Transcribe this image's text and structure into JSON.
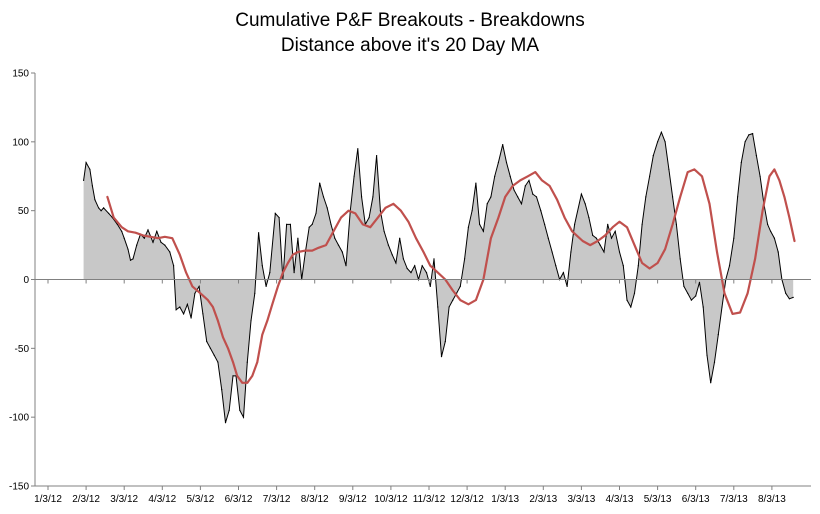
{
  "chart_data": {
    "type": "area",
    "title_lines": [
      "Cumulative P&F Breakouts - Breakdowns",
      "Distance above it's 20 Day MA"
    ],
    "xlabel": "",
    "ylabel": "",
    "ylim": [
      -150,
      150
    ],
    "yticks": [
      -150,
      -100,
      -50,
      0,
      50,
      100,
      150
    ],
    "xticks": [
      "1/3/12",
      "2/3/12",
      "3/3/12",
      "4/3/12",
      "5/3/12",
      "6/3/12",
      "7/3/12",
      "8/3/12",
      "9/3/12",
      "10/3/12",
      "11/3/12",
      "12/3/12",
      "1/3/13",
      "2/3/13",
      "3/3/13",
      "4/3/13",
      "5/3/13",
      "6/3/13",
      "7/3/13",
      "8/3/13"
    ],
    "grid": false,
    "legend": "none",
    "colors": {
      "area_fill": "#c8c8c8",
      "area_line": "#000000",
      "ma_line": "#c0504d"
    },
    "series": [
      {
        "role": "area",
        "points": [
          [
            "2/1/12",
            72
          ],
          [
            "2/3/12",
            85
          ],
          [
            "2/6/12",
            80
          ],
          [
            "2/8/12",
            68
          ],
          [
            "2/10/12",
            58
          ],
          [
            "2/13/12",
            52
          ],
          [
            "2/15/12",
            50
          ],
          [
            "2/17/12",
            52
          ],
          [
            "2/21/12",
            48
          ],
          [
            "2/24/12",
            45
          ],
          [
            "2/28/12",
            40
          ],
          [
            "3/1/12",
            35
          ],
          [
            "3/3/12",
            30
          ],
          [
            "3/6/12",
            22
          ],
          [
            "3/8/12",
            14
          ],
          [
            "3/10/12",
            15
          ],
          [
            "3/13/12",
            25
          ],
          [
            "3/16/12",
            33
          ],
          [
            "3/19/12",
            30
          ],
          [
            "3/22/12",
            36
          ],
          [
            "3/26/12",
            27
          ],
          [
            "3/29/12",
            35
          ],
          [
            "4/2/12",
            27
          ],
          [
            "4/5/12",
            25
          ],
          [
            "4/9/12",
            20
          ],
          [
            "4/12/12",
            10
          ],
          [
            "4/14/12",
            -22
          ],
          [
            "4/17/12",
            -20
          ],
          [
            "4/20/12",
            -25
          ],
          [
            "4/23/12",
            -18
          ],
          [
            "4/26/12",
            -28
          ],
          [
            "4/29/12",
            -10
          ],
          [
            "5/2/12",
            -5
          ],
          [
            "5/5/12",
            -25
          ],
          [
            "5/8/12",
            -45
          ],
          [
            "5/11/12",
            -50
          ],
          [
            "5/14/12",
            -55
          ],
          [
            "5/17/12",
            -60
          ],
          [
            "5/20/12",
            -80
          ],
          [
            "5/23/12",
            -104
          ],
          [
            "5/26/12",
            -95
          ],
          [
            "5/29/12",
            -70
          ],
          [
            "6/1/12",
            -70
          ],
          [
            "6/4/12",
            -95
          ],
          [
            "6/7/12",
            -100
          ],
          [
            "6/10/12",
            -60
          ],
          [
            "6/13/12",
            -30
          ],
          [
            "6/16/12",
            -10
          ],
          [
            "6/19/12",
            34
          ],
          [
            "6/22/12",
            10
          ],
          [
            "6/25/12",
            -5
          ],
          [
            "6/28/12",
            5
          ],
          [
            "7/2/12",
            48
          ],
          [
            "7/5/12",
            45
          ],
          [
            "7/8/12",
            0
          ],
          [
            "7/11/12",
            40
          ],
          [
            "7/14/12",
            40
          ],
          [
            "7/17/12",
            5
          ],
          [
            "7/20/12",
            30
          ],
          [
            "7/23/12",
            0
          ],
          [
            "7/26/12",
            20
          ],
          [
            "7/29/12",
            38
          ],
          [
            "8/1/12",
            40
          ],
          [
            "8/4/12",
            48
          ],
          [
            "8/7/12",
            70
          ],
          [
            "8/10/12",
            60
          ],
          [
            "8/13/12",
            52
          ],
          [
            "8/16/12",
            40
          ],
          [
            "8/19/12",
            30
          ],
          [
            "8/22/12",
            25
          ],
          [
            "8/25/12",
            20
          ],
          [
            "8/28/12",
            10
          ],
          [
            "9/1/12",
            50
          ],
          [
            "9/4/12",
            75
          ],
          [
            "9/7/12",
            95
          ],
          [
            "9/10/12",
            60
          ],
          [
            "9/13/12",
            40
          ],
          [
            "9/16/12",
            45
          ],
          [
            "9/19/12",
            60
          ],
          [
            "9/22/12",
            90
          ],
          [
            "9/25/12",
            50
          ],
          [
            "9/28/12",
            35
          ],
          [
            "10/1/12",
            25
          ],
          [
            "10/4/12",
            18
          ],
          [
            "10/7/12",
            12
          ],
          [
            "10/10/12",
            30
          ],
          [
            "10/13/12",
            15
          ],
          [
            "10/16/12",
            8
          ],
          [
            "10/19/12",
            5
          ],
          [
            "10/22/12",
            10
          ],
          [
            "10/25/12",
            0
          ],
          [
            "10/28/12",
            10
          ],
          [
            "11/1/12",
            5
          ],
          [
            "11/4/12",
            -5
          ],
          [
            "11/7/12",
            15
          ],
          [
            "11/10/12",
            -20
          ],
          [
            "11/13/12",
            -56
          ],
          [
            "11/16/12",
            -45
          ],
          [
            "11/19/12",
            -20
          ],
          [
            "11/22/12",
            -15
          ],
          [
            "11/25/12",
            -10
          ],
          [
            "11/28/12",
            -5
          ],
          [
            "12/1/12",
            15
          ],
          [
            "12/4/12",
            38
          ],
          [
            "12/7/12",
            50
          ],
          [
            "12/10/12",
            70
          ],
          [
            "12/13/12",
            40
          ],
          [
            "12/16/12",
            35
          ],
          [
            "12/19/12",
            55
          ],
          [
            "12/22/12",
            60
          ],
          [
            "12/25/12",
            75
          ],
          [
            "12/28/12",
            85
          ],
          [
            "1/1/13",
            98
          ],
          [
            "1/4/13",
            85
          ],
          [
            "1/7/13",
            75
          ],
          [
            "1/10/13",
            65
          ],
          [
            "1/13/13",
            60
          ],
          [
            "1/16/13",
            55
          ],
          [
            "1/19/13",
            68
          ],
          [
            "1/22/13",
            72
          ],
          [
            "1/25/13",
            62
          ],
          [
            "1/28/13",
            60
          ],
          [
            "2/1/13",
            50
          ],
          [
            "2/4/13",
            40
          ],
          [
            "2/7/13",
            30
          ],
          [
            "2/10/13",
            20
          ],
          [
            "2/13/13",
            10
          ],
          [
            "2/16/13",
            0
          ],
          [
            "2/19/13",
            5
          ],
          [
            "2/22/13",
            -5
          ],
          [
            "2/25/13",
            20
          ],
          [
            "2/28/13",
            40
          ],
          [
            "3/3/13",
            62
          ],
          [
            "3/6/13",
            55
          ],
          [
            "3/9/13",
            45
          ],
          [
            "3/12/13",
            32
          ],
          [
            "3/15/13",
            30
          ],
          [
            "3/18/13",
            25
          ],
          [
            "3/21/13",
            20
          ],
          [
            "3/24/13",
            40
          ],
          [
            "3/27/13",
            30
          ],
          [
            "3/30/13",
            35
          ],
          [
            "4/3/13",
            20
          ],
          [
            "4/6/13",
            10
          ],
          [
            "4/9/13",
            -15
          ],
          [
            "4/12/13",
            -20
          ],
          [
            "4/15/13",
            -10
          ],
          [
            "4/18/13",
            10
          ],
          [
            "4/21/13",
            40
          ],
          [
            "4/24/13",
            60
          ],
          [
            "4/27/13",
            75
          ],
          [
            "4/30/13",
            90
          ],
          [
            "5/3/13",
            100
          ],
          [
            "5/6/13",
            107
          ],
          [
            "5/9/13",
            100
          ],
          [
            "5/12/13",
            80
          ],
          [
            "5/15/13",
            60
          ],
          [
            "5/18/13",
            40
          ],
          [
            "5/21/13",
            15
          ],
          [
            "5/24/13",
            -5
          ],
          [
            "5/27/13",
            -10
          ],
          [
            "5/30/13",
            -15
          ],
          [
            "6/3/13",
            -12
          ],
          [
            "6/6/13",
            -2
          ],
          [
            "6/9/13",
            -20
          ],
          [
            "6/12/13",
            -55
          ],
          [
            "6/15/13",
            -75
          ],
          [
            "6/18/13",
            -60
          ],
          [
            "6/21/13",
            -40
          ],
          [
            "6/24/13",
            -20
          ],
          [
            "6/27/13",
            0
          ],
          [
            "6/30/13",
            10
          ],
          [
            "7/3/13",
            30
          ],
          [
            "7/6/13",
            60
          ],
          [
            "7/9/13",
            85
          ],
          [
            "7/12/13",
            100
          ],
          [
            "7/15/13",
            105
          ],
          [
            "7/18/13",
            106
          ],
          [
            "7/21/13",
            90
          ],
          [
            "7/24/13",
            75
          ],
          [
            "7/27/13",
            55
          ],
          [
            "7/30/13",
            40
          ],
          [
            "8/2/13",
            35
          ],
          [
            "8/5/13",
            30
          ],
          [
            "8/8/13",
            20
          ],
          [
            "8/11/13",
            0
          ],
          [
            "8/14/13",
            -10
          ],
          [
            "8/17/13",
            -14
          ],
          [
            "8/20/13",
            -13
          ]
        ]
      },
      {
        "role": "moving-average",
        "points": [
          [
            "2/20/12",
            60
          ],
          [
            "2/25/12",
            45
          ],
          [
            "3/1/12",
            38
          ],
          [
            "3/6/12",
            35
          ],
          [
            "3/12/12",
            34
          ],
          [
            "3/18/12",
            32
          ],
          [
            "3/24/12",
            31
          ],
          [
            "3/30/12",
            30
          ],
          [
            "4/5/12",
            31
          ],
          [
            "4/11/12",
            30
          ],
          [
            "4/17/12",
            18
          ],
          [
            "4/22/12",
            5
          ],
          [
            "4/27/12",
            -5
          ],
          [
            "5/3/12",
            -10
          ],
          [
            "5/9/12",
            -15
          ],
          [
            "5/13/12",
            -20
          ],
          [
            "5/17/12",
            -30
          ],
          [
            "5/21/12",
            -42
          ],
          [
            "5/25/12",
            -50
          ],
          [
            "5/29/12",
            -60
          ],
          [
            "6/2/12",
            -70
          ],
          [
            "6/6/12",
            -75
          ],
          [
            "6/10/12",
            -75
          ],
          [
            "6/14/12",
            -70
          ],
          [
            "6/18/12",
            -60
          ],
          [
            "6/22/12",
            -40
          ],
          [
            "6/26/12",
            -30
          ],
          [
            "6/30/12",
            -18
          ],
          [
            "7/4/12",
            -5
          ],
          [
            "7/8/12",
            5
          ],
          [
            "7/12/12",
            12
          ],
          [
            "7/16/12",
            18
          ],
          [
            "7/20/12",
            20
          ],
          [
            "7/26/12",
            21
          ],
          [
            "8/1/12",
            21
          ],
          [
            "8/6/12",
            23
          ],
          [
            "8/12/12",
            25
          ],
          [
            "8/18/12",
            35
          ],
          [
            "8/24/12",
            45
          ],
          [
            "8/30/12",
            50
          ],
          [
            "9/5/12",
            48
          ],
          [
            "9/11/12",
            40
          ],
          [
            "9/17/12",
            38
          ],
          [
            "9/23/12",
            45
          ],
          [
            "9/29/12",
            52
          ],
          [
            "10/5/12",
            55
          ],
          [
            "10/11/12",
            50
          ],
          [
            "10/17/12",
            42
          ],
          [
            "10/23/12",
            30
          ],
          [
            "10/29/12",
            20
          ],
          [
            "11/4/12",
            10
          ],
          [
            "11/10/12",
            5
          ],
          [
            "11/16/12",
            0
          ],
          [
            "11/22/12",
            -8
          ],
          [
            "11/28/12",
            -15
          ],
          [
            "12/4/12",
            -18
          ],
          [
            "12/10/12",
            -15
          ],
          [
            "12/16/12",
            0
          ],
          [
            "12/22/12",
            30
          ],
          [
            "12/28/12",
            45
          ],
          [
            "1/3/13",
            60
          ],
          [
            "1/9/13",
            68
          ],
          [
            "1/15/13",
            72
          ],
          [
            "1/21/13",
            75
          ],
          [
            "1/27/13",
            78
          ],
          [
            "2/2/13",
            72
          ],
          [
            "2/8/13",
            68
          ],
          [
            "2/14/13",
            58
          ],
          [
            "2/20/13",
            45
          ],
          [
            "2/26/13",
            35
          ],
          [
            "3/4/13",
            28
          ],
          [
            "3/10/13",
            25
          ],
          [
            "3/16/13",
            28
          ],
          [
            "3/22/13",
            32
          ],
          [
            "3/28/13",
            38
          ],
          [
            "4/3/13",
            42
          ],
          [
            "4/9/13",
            38
          ],
          [
            "4/15/13",
            25
          ],
          [
            "4/21/13",
            12
          ],
          [
            "4/27/13",
            8
          ],
          [
            "5/3/13",
            12
          ],
          [
            "5/9/13",
            22
          ],
          [
            "5/15/13",
            40
          ],
          [
            "5/21/13",
            60
          ],
          [
            "5/27/13",
            78
          ],
          [
            "6/2/13",
            80
          ],
          [
            "6/8/13",
            75
          ],
          [
            "6/14/13",
            55
          ],
          [
            "6/20/13",
            20
          ],
          [
            "6/26/13",
            -10
          ],
          [
            "7/2/13",
            -25
          ],
          [
            "7/8/13",
            -24
          ],
          [
            "7/14/13",
            -10
          ],
          [
            "7/20/13",
            15
          ],
          [
            "7/26/13",
            50
          ],
          [
            "8/1/13",
            75
          ],
          [
            "8/5/13",
            80
          ],
          [
            "8/9/13",
            72
          ],
          [
            "8/13/13",
            60
          ],
          [
            "8/17/13",
            45
          ],
          [
            "8/21/13",
            28
          ]
        ]
      }
    ]
  }
}
